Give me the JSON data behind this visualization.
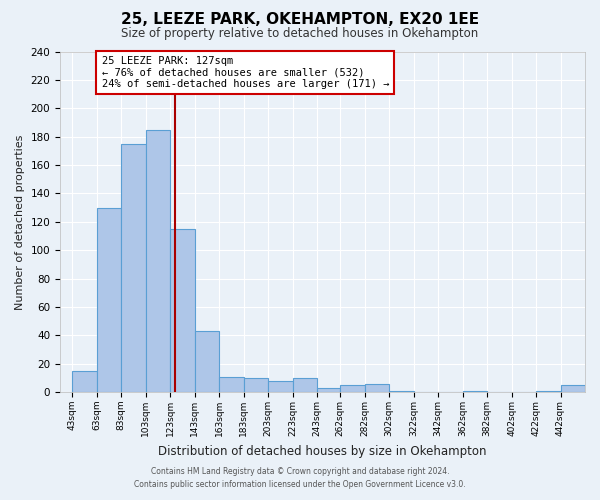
{
  "title": "25, LEEZE PARK, OKEHAMPTON, EX20 1EE",
  "subtitle": "Size of property relative to detached houses in Okehampton",
  "xlabel": "Distribution of detached houses by size in Okehampton",
  "ylabel": "Number of detached properties",
  "bar_left_edges": [
    43,
    63,
    83,
    103,
    123,
    143,
    163,
    183,
    203,
    223,
    243,
    262,
    282,
    302,
    322,
    342,
    362,
    382,
    402,
    422,
    442
  ],
  "bar_widths": [
    20,
    20,
    20,
    20,
    20,
    20,
    20,
    20,
    20,
    20,
    19,
    20,
    20,
    20,
    20,
    20,
    20,
    20,
    20,
    20,
    20
  ],
  "bar_heights": [
    15,
    130,
    175,
    185,
    115,
    43,
    11,
    10,
    8,
    10,
    3,
    5,
    6,
    1,
    0,
    0,
    1,
    0,
    0,
    1,
    5
  ],
  "bar_color": "#aec6e8",
  "bar_edge_color": "#5a9fd4",
  "property_sqm": 127,
  "vline_color": "#aa0000",
  "annotation_title": "25 LEEZE PARK: 127sqm",
  "annotation_line1": "← 76% of detached houses are smaller (532)",
  "annotation_line2": "24% of semi-detached houses are larger (171) →",
  "annotation_box_edge": "#cc0000",
  "ylim": [
    0,
    240
  ],
  "yticks": [
    0,
    20,
    40,
    60,
    80,
    100,
    120,
    140,
    160,
    180,
    200,
    220,
    240
  ],
  "xtick_labels": [
    "43sqm",
    "63sqm",
    "83sqm",
    "103sqm",
    "123sqm",
    "143sqm",
    "163sqm",
    "183sqm",
    "203sqm",
    "223sqm",
    "243sqm",
    "262sqm",
    "282sqm",
    "302sqm",
    "322sqm",
    "342sqm",
    "362sqm",
    "382sqm",
    "402sqm",
    "422sqm",
    "442sqm"
  ],
  "xtick_positions": [
    43,
    63,
    83,
    103,
    123,
    143,
    163,
    183,
    203,
    223,
    243,
    262,
    282,
    302,
    322,
    342,
    362,
    382,
    402,
    422,
    442
  ],
  "xlim": [
    33,
    462
  ],
  "background_color": "#eaf1f8",
  "grid_color": "#ffffff",
  "footer_line1": "Contains HM Land Registry data © Crown copyright and database right 2024.",
  "footer_line2": "Contains public sector information licensed under the Open Government Licence v3.0."
}
